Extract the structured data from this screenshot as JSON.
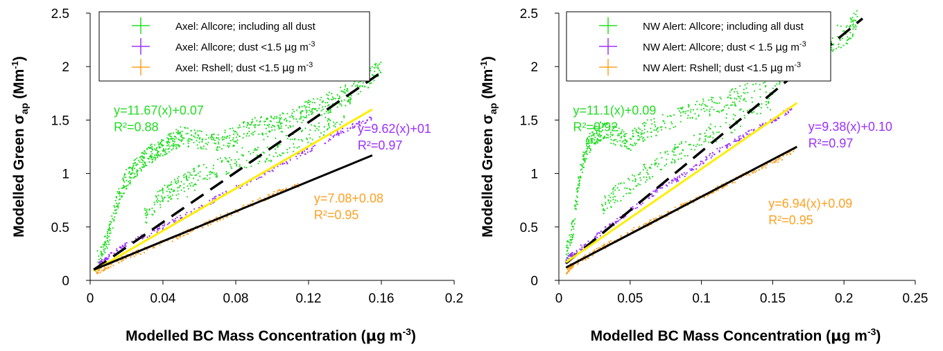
{
  "chart_data": [
    {
      "type": "scatter",
      "xlabel": "Modelled BC Mass Concentration (μg m⁻³)",
      "ylabel": "Modelled Green σap (Mm⁻¹)",
      "ylabel_parts": [
        "Modelled Green σ",
        "ap",
        " (Mm",
        "-1",
        ")"
      ],
      "xlabel_parts": [
        "Modelled BC Mass Concentration (",
        "μ",
        "g m",
        "-3",
        ")"
      ],
      "xlim": [
        0,
        0.2
      ],
      "ylim": [
        0,
        2.5
      ],
      "xticks": [
        0,
        0.04,
        0.08,
        0.12,
        0.16,
        0.2
      ],
      "xtick_labels": [
        "0",
        "0.04",
        "0.08",
        "0.12",
        "0.16",
        "0.2"
      ],
      "yticks": [
        0,
        0.5,
        1,
        1.5,
        2,
        2.5
      ],
      "ytick_labels": [
        "0",
        "0.5",
        "1",
        "1.5",
        "2",
        "2.5"
      ],
      "grid": false,
      "legend_position": "top",
      "series": [
        {
          "name": "Axel: Allcore; including all dust",
          "legend_parts": [
            "Axel: Allcore; including all dust"
          ],
          "color": "#22dd22",
          "points": [
            [
              0.004,
              0.2
            ],
            [
              0.01,
              0.4
            ],
            [
              0.015,
              0.75
            ],
            [
              0.02,
              0.95
            ],
            [
              0.025,
              1.05
            ],
            [
              0.03,
              1.15
            ],
            [
              0.035,
              1.2
            ],
            [
              0.04,
              1.25
            ],
            [
              0.045,
              1.3
            ],
            [
              0.05,
              1.35
            ],
            [
              0.06,
              1.32
            ],
            [
              0.07,
              1.3
            ],
            [
              0.08,
              1.35
            ],
            [
              0.09,
              1.45
            ],
            [
              0.1,
              1.45
            ],
            [
              0.11,
              1.5
            ],
            [
              0.12,
              1.6
            ],
            [
              0.13,
              1.65
            ],
            [
              0.14,
              1.7
            ],
            [
              0.15,
              1.85
            ],
            [
              0.16,
              1.98
            ],
            [
              0.03,
              0.6
            ],
            [
              0.04,
              0.8
            ],
            [
              0.05,
              0.9
            ],
            [
              0.06,
              1.0
            ],
            [
              0.08,
              1.1
            ],
            [
              0.1,
              1.2
            ],
            [
              0.12,
              1.35
            ],
            [
              0.14,
              1.55
            ]
          ]
        },
        {
          "name": "Axel: Allcore; dust <1.5 μg m⁻³",
          "legend_parts": [
            "Axel: Allcore; dust <1.5 ",
            "μ",
            "g m",
            "-3"
          ],
          "color": "#9b30ff",
          "points": [
            [
              0.005,
              0.15
            ],
            [
              0.01,
              0.22
            ],
            [
              0.02,
              0.33
            ],
            [
              0.04,
              0.5
            ],
            [
              0.06,
              0.68
            ],
            [
              0.08,
              0.86
            ],
            [
              0.1,
              1.04
            ],
            [
              0.12,
              1.22
            ],
            [
              0.14,
              1.41
            ],
            [
              0.155,
              1.52
            ]
          ]
        },
        {
          "name": "Axel: Rshell; dust <1.5 μg m⁻³",
          "legend_parts": [
            "Axel: Rshell; dust <1.5 ",
            "μ",
            "g m",
            "-3"
          ],
          "color": "#ffa020",
          "points": [
            [
              0.003,
              0.07
            ],
            [
              0.01,
              0.14
            ],
            [
              0.02,
              0.22
            ],
            [
              0.04,
              0.35
            ],
            [
              0.06,
              0.5
            ],
            [
              0.08,
              0.65
            ],
            [
              0.1,
              0.8
            ],
            [
              0.115,
              0.9
            ]
          ]
        }
      ],
      "fit_lines": [
        {
          "color": "#000000",
          "style": "dashed",
          "x": [
            0.002,
            0.162
          ],
          "y": [
            0.1,
            1.97
          ]
        },
        {
          "color": "#ffee00",
          "style": "solid",
          "x": [
            0.002,
            0.155
          ],
          "y": [
            0.09,
            1.6
          ]
        },
        {
          "color": "#000000",
          "style": "solid",
          "x": [
            0.002,
            0.155
          ],
          "y": [
            0.1,
            1.17
          ]
        }
      ],
      "annotations": [
        {
          "lines": [
            "y=11.67(x)+0.07",
            "R²=0.88"
          ],
          "color": "#22dd22",
          "x": 0.013,
          "y": 1.55
        },
        {
          "lines": [
            "y=9.62(x)+01",
            "R²=0.97"
          ],
          "color": "#9b30ff",
          "x": 0.147,
          "y": 1.38
        },
        {
          "lines": [
            "y=7.08+0.08",
            "R²=0.95"
          ],
          "color": "#ffa020",
          "x": 0.123,
          "y": 0.73
        }
      ]
    },
    {
      "type": "scatter",
      "xlabel": "Modelled BC Mass Concentration (μg m⁻³)",
      "ylabel": "Modelled Green σap (Mm⁻¹)",
      "ylabel_parts": [
        "Modelled Green σ",
        "ap",
        " (Mm",
        "-1",
        ")"
      ],
      "xlabel_parts": [
        "Modelled BC Mass Concentration (",
        "μ",
        "g m",
        "-3",
        ")"
      ],
      "xlim": [
        0,
        0.25
      ],
      "ylim": [
        0,
        2.5
      ],
      "xticks": [
        0,
        0.05,
        0.1,
        0.15,
        0.2,
        0.25
      ],
      "xtick_labels": [
        "0",
        "0.05",
        "0.1",
        "0.15",
        "0.2",
        "0.25"
      ],
      "yticks": [
        0,
        0.5,
        1,
        1.5,
        2,
        2.5
      ],
      "ytick_labels": [
        "0",
        "0.5",
        "1",
        "1.5",
        "2",
        "2.5"
      ],
      "grid": false,
      "legend_position": "top",
      "series": [
        {
          "name": "NW Alert: Allcore; including all dust",
          "legend_parts": [
            "NW Alert: Allcore; including all dust"
          ],
          "color": "#22dd22",
          "points": [
            [
              0.005,
              0.25
            ],
            [
              0.01,
              0.5
            ],
            [
              0.015,
              1.0
            ],
            [
              0.02,
              1.25
            ],
            [
              0.025,
              1.35
            ],
            [
              0.03,
              1.4
            ],
            [
              0.04,
              1.35
            ],
            [
              0.05,
              1.3
            ],
            [
              0.06,
              1.4
            ],
            [
              0.08,
              1.5
            ],
            [
              0.1,
              1.6
            ],
            [
              0.12,
              1.7
            ],
            [
              0.14,
              1.8
            ],
            [
              0.16,
              1.95
            ],
            [
              0.18,
              2.1
            ],
            [
              0.2,
              2.25
            ],
            [
              0.21,
              2.45
            ],
            [
              0.03,
              0.7
            ],
            [
              0.05,
              0.9
            ],
            [
              0.07,
              1.1
            ],
            [
              0.09,
              1.25
            ],
            [
              0.12,
              1.45
            ],
            [
              0.15,
              1.7
            ]
          ]
        },
        {
          "name": "NW Alert: Allcore; dust < 1.5 μg m⁻³",
          "legend_parts": [
            "NW Alert: Allcore; dust < 1.5 ",
            "μ",
            "g m",
            "-3"
          ],
          "color": "#9b30ff",
          "points": [
            [
              0.005,
              0.18
            ],
            [
              0.01,
              0.25
            ],
            [
              0.03,
              0.45
            ],
            [
              0.05,
              0.65
            ],
            [
              0.07,
              0.85
            ],
            [
              0.09,
              1.0
            ],
            [
              0.11,
              1.2
            ],
            [
              0.13,
              1.35
            ],
            [
              0.15,
              1.5
            ],
            [
              0.165,
              1.62
            ]
          ]
        },
        {
          "name": "NW Alert: Rshell; dust <1.5 μg m⁻³",
          "legend_parts": [
            "NW Alert: Rshell; dust <1.5 ",
            "μ",
            "g m",
            "-3"
          ],
          "color": "#ffa020",
          "points": [
            [
              0.005,
              0.08
            ],
            [
              0.01,
              0.15
            ],
            [
              0.03,
              0.3
            ],
            [
              0.05,
              0.45
            ],
            [
              0.07,
              0.58
            ],
            [
              0.09,
              0.72
            ],
            [
              0.11,
              0.85
            ],
            [
              0.13,
              0.98
            ],
            [
              0.15,
              1.1
            ],
            [
              0.165,
              1.22
            ]
          ]
        }
      ],
      "fit_lines": [
        {
          "color": "#000000",
          "style": "dashed",
          "x": [
            0.005,
            0.213
          ],
          "y": [
            0.16,
            2.45
          ]
        },
        {
          "color": "#ffee00",
          "style": "solid",
          "x": [
            0.005,
            0.167
          ],
          "y": [
            0.17,
            1.66
          ]
        },
        {
          "color": "#000000",
          "style": "solid",
          "x": [
            0.005,
            0.167
          ],
          "y": [
            0.12,
            1.25
          ]
        }
      ],
      "annotations": [
        {
          "lines": [
            "y=11.1(x)+0.09",
            "R²=0.92"
          ],
          "color": "#22dd22",
          "x": 0.01,
          "y": 1.55
        },
        {
          "lines": [
            "y=9.38(x)+0.10",
            "R²=0.97"
          ],
          "color": "#9b30ff",
          "x": 0.175,
          "y": 1.4
        },
        {
          "lines": [
            "y=6.94(x)+0.09",
            "R²=0.95"
          ],
          "color": "#ffa020",
          "x": 0.147,
          "y": 0.68
        }
      ]
    }
  ]
}
